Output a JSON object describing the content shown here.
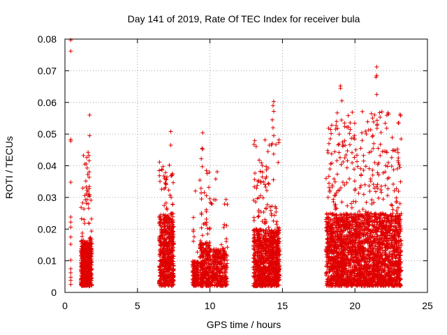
{
  "chart_data": {
    "type": "scatter",
    "title": "Day 141 of 2019, Rate Of TEC Index for receiver bula",
    "xlabel": "GPS time / hours",
    "ylabel": "ROTI / TECUs",
    "xlim": [
      0,
      25
    ],
    "ylim": [
      0,
      0.08
    ],
    "xticks": [
      0,
      5,
      10,
      15,
      20,
      25
    ],
    "yticks": [
      0,
      0.01,
      0.02,
      0.03,
      0.04,
      0.05,
      0.06,
      0.07,
      0.08
    ],
    "xtick_labels": [
      "0",
      "5",
      "10",
      "15",
      "20",
      "25"
    ],
    "ytick_labels": [
      "0",
      "0.01",
      "0.02",
      "0.03",
      "0.04",
      "0.05",
      "0.06",
      "0.07",
      "0.08"
    ],
    "grid": true,
    "marker": "+",
    "series_color": "#e00000",
    "clusters": [
      {
        "x0": 1.1,
        "x1": 1.85,
        "ymin": 0.002,
        "typ_hi": 0.016,
        "peak": 0.056,
        "n": 520
      },
      {
        "x0": 6.5,
        "x1": 7.5,
        "ymin": 0.002,
        "typ_hi": 0.025,
        "peak": 0.051,
        "n": 600
      },
      {
        "x0": 8.8,
        "x1": 9.2,
        "ymin": 0.002,
        "typ_hi": 0.01,
        "peak": 0.032,
        "n": 130
      },
      {
        "x0": 9.3,
        "x1": 10.0,
        "ymin": 0.002,
        "typ_hi": 0.016,
        "peak": 0.05,
        "n": 280
      },
      {
        "x0": 10.0,
        "x1": 11.2,
        "ymin": 0.002,
        "typ_hi": 0.014,
        "peak": 0.038,
        "n": 300
      },
      {
        "x0": 13.0,
        "x1": 14.8,
        "ymin": 0.002,
        "typ_hi": 0.02,
        "peak": 0.06,
        "n": 950
      },
      {
        "x0": 18.0,
        "x1": 23.2,
        "ymin": 0.002,
        "typ_hi": 0.025,
        "peak": 0.071,
        "n": 2600
      }
    ],
    "outliers": [
      {
        "x": 0.4,
        "y": 0.0797
      },
      {
        "x": 0.4,
        "y": 0.0762
      },
      {
        "x": 0.4,
        "y": 0.0483
      },
      {
        "x": 0.4,
        "y": 0.0478
      },
      {
        "x": 0.4,
        "y": 0.0348
      },
      {
        "x": 0.4,
        "y": 0.0238
      },
      {
        "x": 0.4,
        "y": 0.0222
      },
      {
        "x": 0.4,
        "y": 0.0206
      },
      {
        "x": 0.4,
        "y": 0.0175
      },
      {
        "x": 0.4,
        "y": 0.0152
      },
      {
        "x": 0.4,
        "y": 0.0102
      },
      {
        "x": 0.4,
        "y": 0.0075
      },
      {
        "x": 0.4,
        "y": 0.0062
      },
      {
        "x": 0.4,
        "y": 0.0048
      },
      {
        "x": 0.4,
        "y": 0.0038
      },
      {
        "x": 0.4,
        "y": 0.0025
      },
      {
        "x": 1.7,
        "y": 0.056
      },
      {
        "x": 1.7,
        "y": 0.0495
      },
      {
        "x": 1.65,
        "y": 0.0432
      },
      {
        "x": 7.3,
        "y": 0.0508
      },
      {
        "x": 7.3,
        "y": 0.0465
      },
      {
        "x": 7.2,
        "y": 0.0402
      },
      {
        "x": 9.5,
        "y": 0.0504
      },
      {
        "x": 9.45,
        "y": 0.0455
      },
      {
        "x": 9.5,
        "y": 0.0452
      },
      {
        "x": 9.4,
        "y": 0.0422
      },
      {
        "x": 9.0,
        "y": 0.032
      },
      {
        "x": 10.5,
        "y": 0.0381
      },
      {
        "x": 10.4,
        "y": 0.0358
      },
      {
        "x": 14.4,
        "y": 0.0603
      },
      {
        "x": 14.35,
        "y": 0.059
      },
      {
        "x": 14.4,
        "y": 0.0572
      },
      {
        "x": 14.3,
        "y": 0.0545
      },
      {
        "x": 14.35,
        "y": 0.052
      },
      {
        "x": 14.4,
        "y": 0.0495
      },
      {
        "x": 14.1,
        "y": 0.0465
      },
      {
        "x": 14.0,
        "y": 0.0445
      },
      {
        "x": 18.3,
        "y": 0.0485
      },
      {
        "x": 18.4,
        "y": 0.0528
      },
      {
        "x": 18.7,
        "y": 0.0527
      },
      {
        "x": 19.0,
        "y": 0.0652
      },
      {
        "x": 19.0,
        "y": 0.0645
      },
      {
        "x": 19.1,
        "y": 0.0605
      },
      {
        "x": 18.8,
        "y": 0.0518
      },
      {
        "x": 19.2,
        "y": 0.0465
      },
      {
        "x": 18.9,
        "y": 0.0442
      },
      {
        "x": 19.3,
        "y": 0.0425
      },
      {
        "x": 20.5,
        "y": 0.048
      },
      {
        "x": 20.4,
        "y": 0.0455
      },
      {
        "x": 20.6,
        "y": 0.0415
      },
      {
        "x": 21.2,
        "y": 0.0492
      },
      {
        "x": 21.3,
        "y": 0.047
      },
      {
        "x": 21.5,
        "y": 0.0712
      },
      {
        "x": 21.5,
        "y": 0.0685
      },
      {
        "x": 21.45,
        "y": 0.068
      },
      {
        "x": 21.5,
        "y": 0.0625
      },
      {
        "x": 21.6,
        "y": 0.0455
      },
      {
        "x": 21.8,
        "y": 0.0505
      },
      {
        "x": 21.9,
        "y": 0.0445
      },
      {
        "x": 22.2,
        "y": 0.0442
      },
      {
        "x": 22.3,
        "y": 0.041
      },
      {
        "x": 23.0,
        "y": 0.041
      },
      {
        "x": 23.1,
        "y": 0.0395
      }
    ]
  }
}
